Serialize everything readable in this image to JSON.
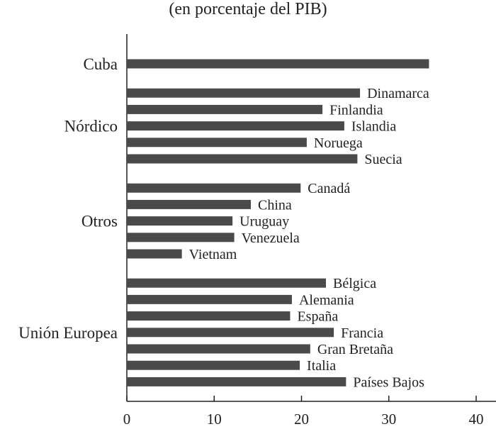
{
  "chart_data": {
    "type": "bar",
    "orientation": "horizontal",
    "subtitle": "(en porcentaje del PIB)",
    "xlim": [
      0,
      40
    ],
    "xticks": [
      0,
      10,
      20,
      30,
      40
    ],
    "grid": false,
    "bar_color": "#4a4a4a",
    "groups": [
      {
        "name": "Cuba",
        "bars": [
          {
            "label": "",
            "value": 34.6
          }
        ]
      },
      {
        "name": "Nórdico",
        "bars": [
          {
            "label": "Dinamarca",
            "value": 26.7
          },
          {
            "label": "Finlandia",
            "value": 22.4
          },
          {
            "label": "Islandia",
            "value": 24.9
          },
          {
            "label": "Noruega",
            "value": 20.6
          },
          {
            "label": "Suecia",
            "value": 26.4
          }
        ]
      },
      {
        "name": "Otros",
        "bars": [
          {
            "label": "Canadá",
            "value": 19.9
          },
          {
            "label": "China",
            "value": 14.2
          },
          {
            "label": "Uruguay",
            "value": 12.1
          },
          {
            "label": "Venezuela",
            "value": 12.3
          },
          {
            "label": "Vietnam",
            "value": 6.3
          }
        ]
      },
      {
        "name": "Unión Europea",
        "bars": [
          {
            "label": "Bélgica",
            "value": 22.8
          },
          {
            "label": "Alemania",
            "value": 18.9
          },
          {
            "label": "España",
            "value": 18.7
          },
          {
            "label": "Francia",
            "value": 23.7
          },
          {
            "label": "Gran Bretaña",
            "value": 21.0
          },
          {
            "label": "Italia",
            "value": 19.8
          },
          {
            "label": "Países Bajos",
            "value": 25.1
          }
        ]
      }
    ]
  }
}
